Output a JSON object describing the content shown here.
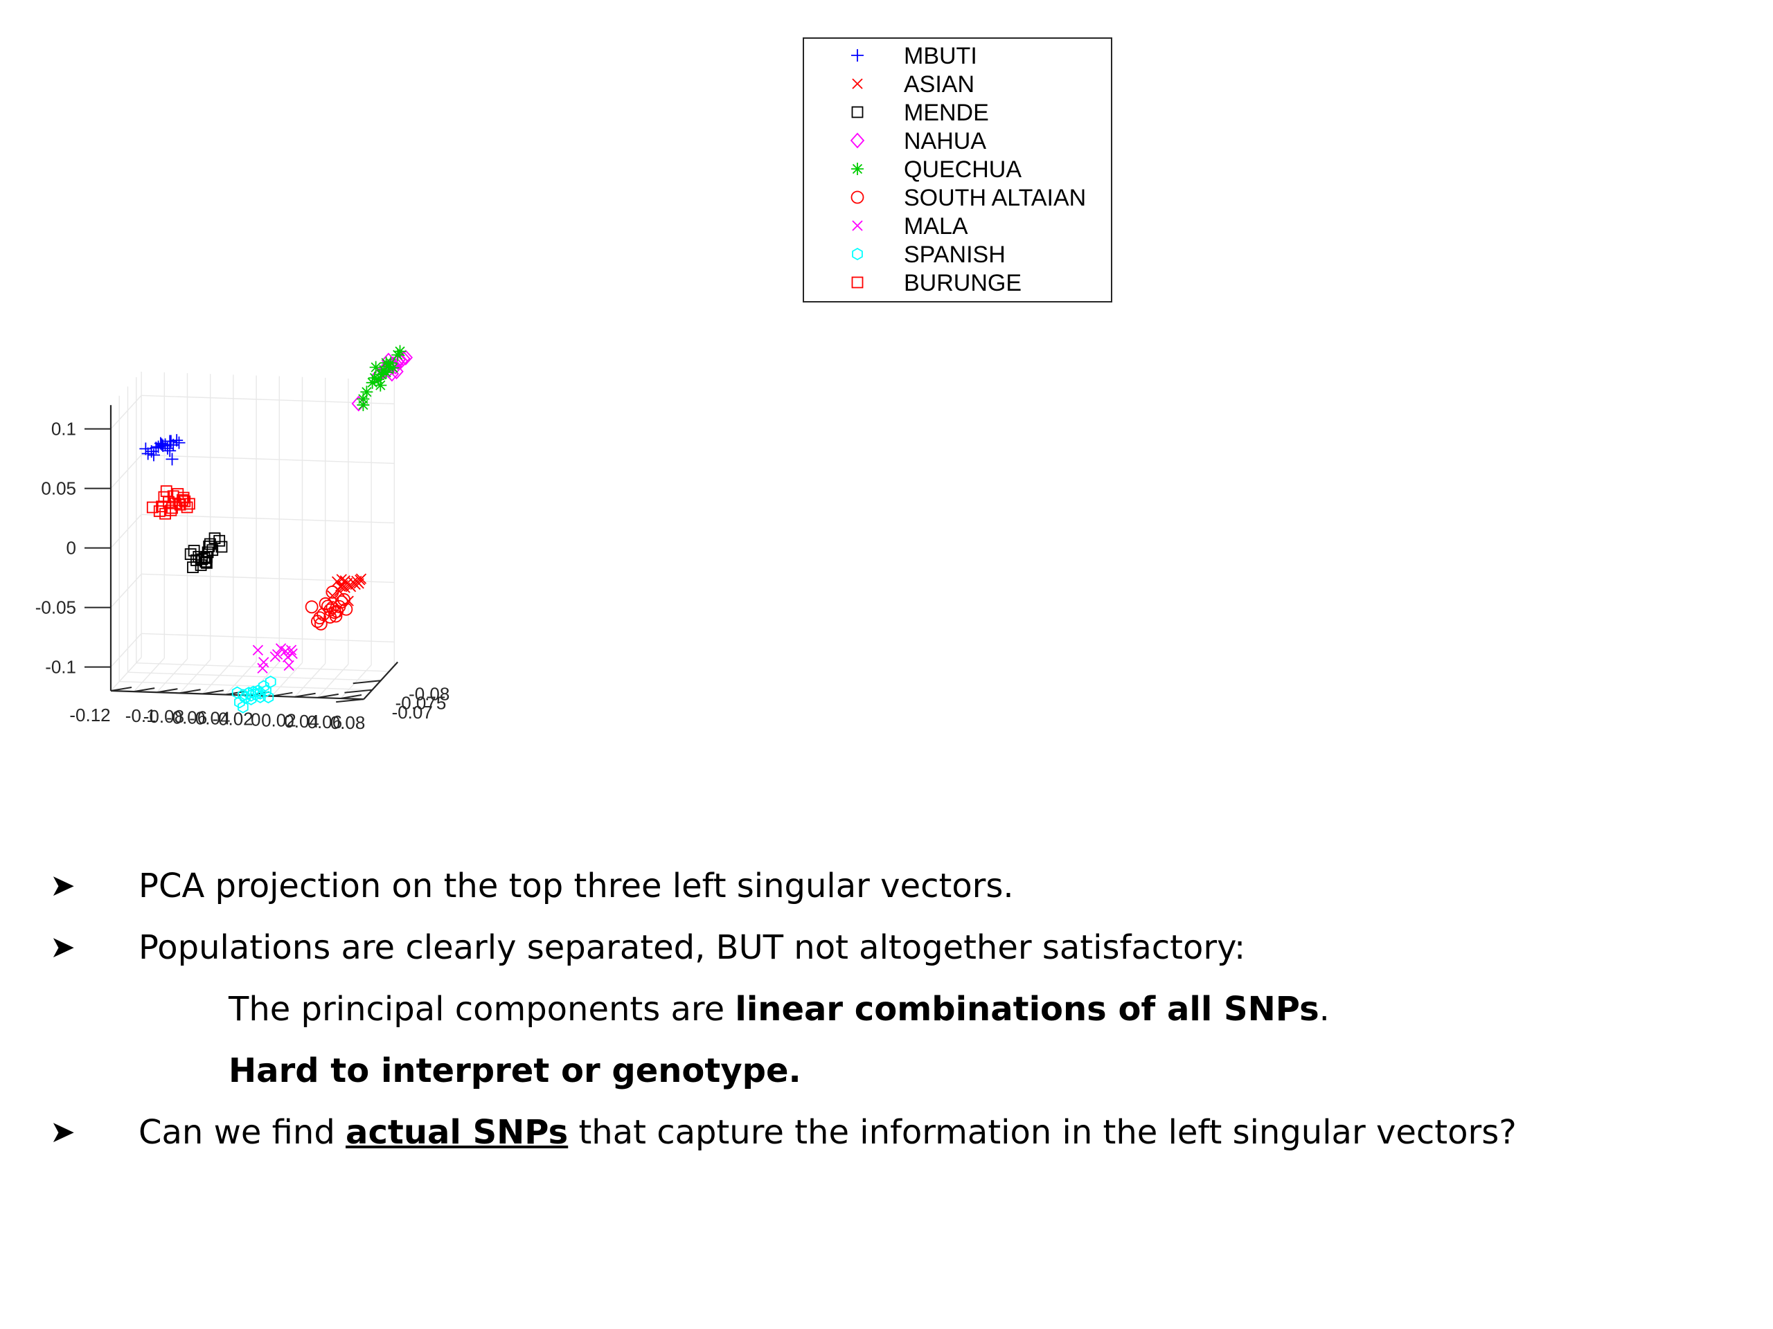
{
  "chart_data": {
    "type": "scatter",
    "dimensions": 3,
    "axes": {
      "x": {
        "ticks": [
          "-0.12",
          "-0.1",
          "-0.08",
          "-0.06",
          "-0.04",
          "-0.02",
          "0",
          "0.02",
          "0.04",
          "0.06",
          "0.08"
        ]
      },
      "y": {
        "ticks": [
          "-0.07",
          "-0.075",
          "-0.08"
        ]
      },
      "z": {
        "ticks": [
          "0.1",
          "0.05",
          "0",
          "-0.05",
          "-0.1"
        ],
        "range": [
          -0.12,
          0.12
        ]
      }
    },
    "grid": true,
    "legend_position": "top-center",
    "series": [
      {
        "name": "MBUTI",
        "marker": "plus",
        "color": "#0000ff",
        "points": [
          [
            -0.1,
            -0.077,
            0.073
          ],
          [
            -0.098,
            -0.077,
            0.069
          ],
          [
            -0.095,
            -0.077,
            0.071
          ],
          [
            -0.093,
            -0.077,
            0.068
          ],
          [
            -0.091,
            -0.077,
            0.074
          ],
          [
            -0.089,
            -0.077,
            0.075
          ],
          [
            -0.087,
            -0.077,
            0.078
          ],
          [
            -0.086,
            -0.077,
            0.077
          ],
          [
            -0.085,
            -0.077,
            0.076
          ],
          [
            -0.083,
            -0.077,
            0.077
          ],
          [
            -0.081,
            -0.077,
            0.074
          ],
          [
            -0.079,
            -0.077,
            0.08
          ],
          [
            -0.078,
            -0.077,
            0.08
          ],
          [
            -0.079,
            -0.077,
            0.072
          ],
          [
            -0.077,
            -0.077,
            0.065
          ],
          [
            -0.076,
            -0.077,
            0.077
          ],
          [
            -0.073,
            -0.077,
            0.081
          ],
          [
            -0.071,
            -0.077,
            0.079
          ]
        ]
      },
      {
        "name": "ASIAN",
        "marker": "x",
        "color": "#ff0000",
        "points": [
          [
            0.062,
            -0.08,
            -0.038
          ],
          [
            0.065,
            -0.08,
            -0.042
          ],
          [
            0.067,
            -0.08,
            -0.041
          ],
          [
            0.069,
            -0.08,
            -0.043
          ],
          [
            0.071,
            -0.08,
            -0.039
          ],
          [
            0.073,
            -0.08,
            -0.041
          ],
          [
            0.074,
            -0.08,
            -0.042
          ],
          [
            0.076,
            -0.08,
            -0.038
          ],
          [
            0.078,
            -0.08,
            -0.04
          ],
          [
            0.079,
            -0.08,
            -0.037
          ],
          [
            0.081,
            -0.08,
            -0.039
          ],
          [
            0.082,
            -0.08,
            -0.036
          ],
          [
            0.064,
            -0.08,
            -0.046
          ],
          [
            0.069,
            -0.08,
            -0.037
          ],
          [
            0.058,
            -0.08,
            -0.05
          ],
          [
            0.072,
            -0.08,
            -0.054
          ],
          [
            0.066,
            -0.08,
            -0.036
          ],
          [
            0.083,
            -0.08,
            -0.035
          ]
        ]
      },
      {
        "name": "MENDE",
        "marker": "square",
        "color": "#000000",
        "points": [
          [
            -0.058,
            -0.075,
            -0.011
          ],
          [
            -0.055,
            -0.075,
            -0.008
          ],
          [
            -0.053,
            -0.075,
            -0.016
          ],
          [
            -0.051,
            -0.075,
            -0.013
          ],
          [
            -0.048,
            -0.075,
            -0.015
          ],
          [
            -0.046,
            -0.075,
            -0.014
          ],
          [
            -0.045,
            -0.075,
            -0.017
          ],
          [
            -0.044,
            -0.075,
            -0.013
          ],
          [
            -0.043,
            -0.075,
            -0.009
          ],
          [
            -0.042,
            -0.075,
            -0.004
          ],
          [
            -0.041,
            -0.075,
            -0.002
          ],
          [
            -0.039,
            -0.075,
            -0.007
          ],
          [
            -0.037,
            -0.075,
            0.003
          ],
          [
            -0.033,
            -0.075,
            0.001
          ],
          [
            -0.031,
            -0.075,
            -0.004
          ],
          [
            -0.049,
            -0.075,
            -0.02
          ],
          [
            -0.056,
            -0.075,
            -0.022
          ],
          [
            -0.044,
            -0.075,
            -0.018
          ]
        ]
      },
      {
        "name": "NAHUA",
        "marker": "diamond",
        "color": "#ff00ff",
        "points": [
          [
            0.083,
            -0.09,
            0.12
          ],
          [
            0.088,
            -0.09,
            0.124
          ],
          [
            0.09,
            -0.09,
            0.127
          ],
          [
            0.092,
            -0.09,
            0.125
          ],
          [
            0.094,
            -0.09,
            0.129
          ],
          [
            0.096,
            -0.09,
            0.13
          ],
          [
            0.098,
            -0.09,
            0.128
          ],
          [
            0.1,
            -0.09,
            0.132
          ],
          [
            0.101,
            -0.09,
            0.134
          ],
          [
            0.103,
            -0.09,
            0.133
          ],
          [
            0.105,
            -0.09,
            0.135
          ],
          [
            0.107,
            -0.09,
            0.136
          ],
          [
            0.095,
            -0.09,
            0.122
          ],
          [
            0.099,
            -0.09,
            0.124
          ],
          [
            0.066,
            -0.09,
            0.096
          ],
          [
            0.092,
            -0.09,
            0.133
          ]
        ]
      },
      {
        "name": "QUECHUA",
        "marker": "asterisk",
        "color": "#00cc00",
        "points": [
          [
            0.07,
            -0.09,
            0.1
          ],
          [
            0.073,
            -0.09,
            0.106
          ],
          [
            0.078,
            -0.09,
            0.114
          ],
          [
            0.08,
            -0.09,
            0.118
          ],
          [
            0.083,
            -0.09,
            0.117
          ],
          [
            0.086,
            -0.09,
            0.121
          ],
          [
            0.088,
            -0.09,
            0.125
          ],
          [
            0.09,
            -0.09,
            0.123
          ],
          [
            0.092,
            -0.09,
            0.128
          ],
          [
            0.094,
            -0.09,
            0.131
          ],
          [
            0.096,
            -0.09,
            0.127
          ],
          [
            0.1,
            -0.09,
            0.138
          ],
          [
            0.102,
            -0.09,
            0.141
          ],
          [
            0.085,
            -0.09,
            0.112
          ],
          [
            0.081,
            -0.09,
            0.127
          ],
          [
            0.07,
            -0.09,
            0.095
          ],
          [
            0.09,
            -0.09,
            0.131
          ]
        ]
      },
      {
        "name": "SOUTH ALTAIAN",
        "marker": "circle",
        "color": "#ff0000",
        "points": [
          [
            0.04,
            -0.08,
            -0.06
          ],
          [
            0.047,
            -0.08,
            -0.069
          ],
          [
            0.048,
            -0.08,
            -0.074
          ],
          [
            0.05,
            -0.08,
            -0.066
          ],
          [
            0.052,
            -0.08,
            -0.057
          ],
          [
            0.054,
            -0.08,
            -0.059
          ],
          [
            0.056,
            -0.08,
            -0.062
          ],
          [
            0.058,
            -0.08,
            -0.06
          ],
          [
            0.06,
            -0.08,
            -0.064
          ],
          [
            0.061,
            -0.08,
            -0.067
          ],
          [
            0.062,
            -0.08,
            -0.063
          ],
          [
            0.064,
            -0.08,
            -0.059
          ],
          [
            0.066,
            -0.08,
            -0.055
          ],
          [
            0.068,
            -0.08,
            -0.053
          ],
          [
            0.058,
            -0.08,
            -0.047
          ],
          [
            0.07,
            -0.08,
            -0.061
          ],
          [
            0.045,
            -0.08,
            -0.072
          ],
          [
            0.056,
            -0.08,
            -0.068
          ]
        ]
      },
      {
        "name": "MALA",
        "marker": "x",
        "color": "#ff00ff",
        "points": [
          [
            0.005,
            -0.072,
            -0.085
          ],
          [
            0.01,
            -0.072,
            -0.095
          ],
          [
            0.02,
            -0.072,
            -0.09
          ],
          [
            0.022,
            -0.072,
            -0.088
          ],
          [
            0.025,
            -0.072,
            -0.083
          ],
          [
            0.029,
            -0.072,
            -0.085
          ],
          [
            0.031,
            -0.072,
            -0.09
          ],
          [
            0.032,
            -0.072,
            -0.097
          ],
          [
            0.034,
            -0.072,
            -0.084
          ],
          [
            0.009,
            -0.072,
            -0.1
          ],
          [
            0.035,
            -0.072,
            -0.087
          ]
        ]
      },
      {
        "name": "SPANISH",
        "marker": "hexagram",
        "color": "#00ffff",
        "points": [
          [
            -0.01,
            -0.07,
            -0.118
          ],
          [
            -0.005,
            -0.07,
            -0.12
          ],
          [
            -0.003,
            -0.07,
            -0.122
          ],
          [
            0.0,
            -0.07,
            -0.118
          ],
          [
            0.002,
            -0.07,
            -0.12
          ],
          [
            0.004,
            -0.07,
            -0.117
          ],
          [
            0.006,
            -0.07,
            -0.119
          ],
          [
            0.008,
            -0.07,
            -0.116
          ],
          [
            0.01,
            -0.07,
            -0.118
          ],
          [
            0.013,
            -0.07,
            -0.112
          ],
          [
            0.015,
            -0.07,
            -0.116
          ],
          [
            0.017,
            -0.07,
            -0.121
          ],
          [
            0.019,
            -0.07,
            -0.108
          ],
          [
            0.002,
            -0.07,
            -0.123
          ],
          [
            -0.008,
            -0.07,
            -0.126
          ],
          [
            -0.005,
            -0.07,
            -0.13
          ],
          [
            0.01,
            -0.07,
            -0.121
          ]
        ]
      },
      {
        "name": "BURUNGE",
        "marker": "square",
        "color": "#ff0000",
        "points": [
          [
            -0.094,
            -0.077,
            0.024
          ],
          [
            -0.088,
            -0.077,
            0.021
          ],
          [
            -0.086,
            -0.077,
            0.025
          ],
          [
            -0.084,
            -0.077,
            0.033
          ],
          [
            -0.082,
            -0.077,
            0.038
          ],
          [
            -0.08,
            -0.077,
            0.029
          ],
          [
            -0.078,
            -0.077,
            0.022
          ],
          [
            -0.076,
            -0.077,
            0.034
          ],
          [
            -0.074,
            -0.077,
            0.028
          ],
          [
            -0.072,
            -0.077,
            0.036
          ],
          [
            -0.07,
            -0.077,
            0.027
          ],
          [
            -0.068,
            -0.077,
            0.031
          ],
          [
            -0.066,
            -0.077,
            0.03
          ],
          [
            -0.064,
            -0.077,
            0.025
          ],
          [
            -0.062,
            -0.077,
            0.028
          ],
          [
            -0.083,
            -0.077,
            0.019
          ],
          [
            -0.077,
            -0.077,
            0.024
          ],
          [
            -0.067,
            -0.077,
            0.033
          ]
        ]
      }
    ]
  },
  "bullets": {
    "b1": "PCA projection on the top three left singular vectors.",
    "b2": "Populations are clearly separated, BUT not altogether satisfactory:",
    "b3_pre": "The principal components are ",
    "b3_bold": "linear combinations of all SNPs",
    "b3_post": ".",
    "b4": "Hard to interpret or genotype.",
    "b5_pre": "Can we find ",
    "b5_ul": "actual SNPs",
    "b5_post": " that capture the information in the left singular vectors?"
  }
}
